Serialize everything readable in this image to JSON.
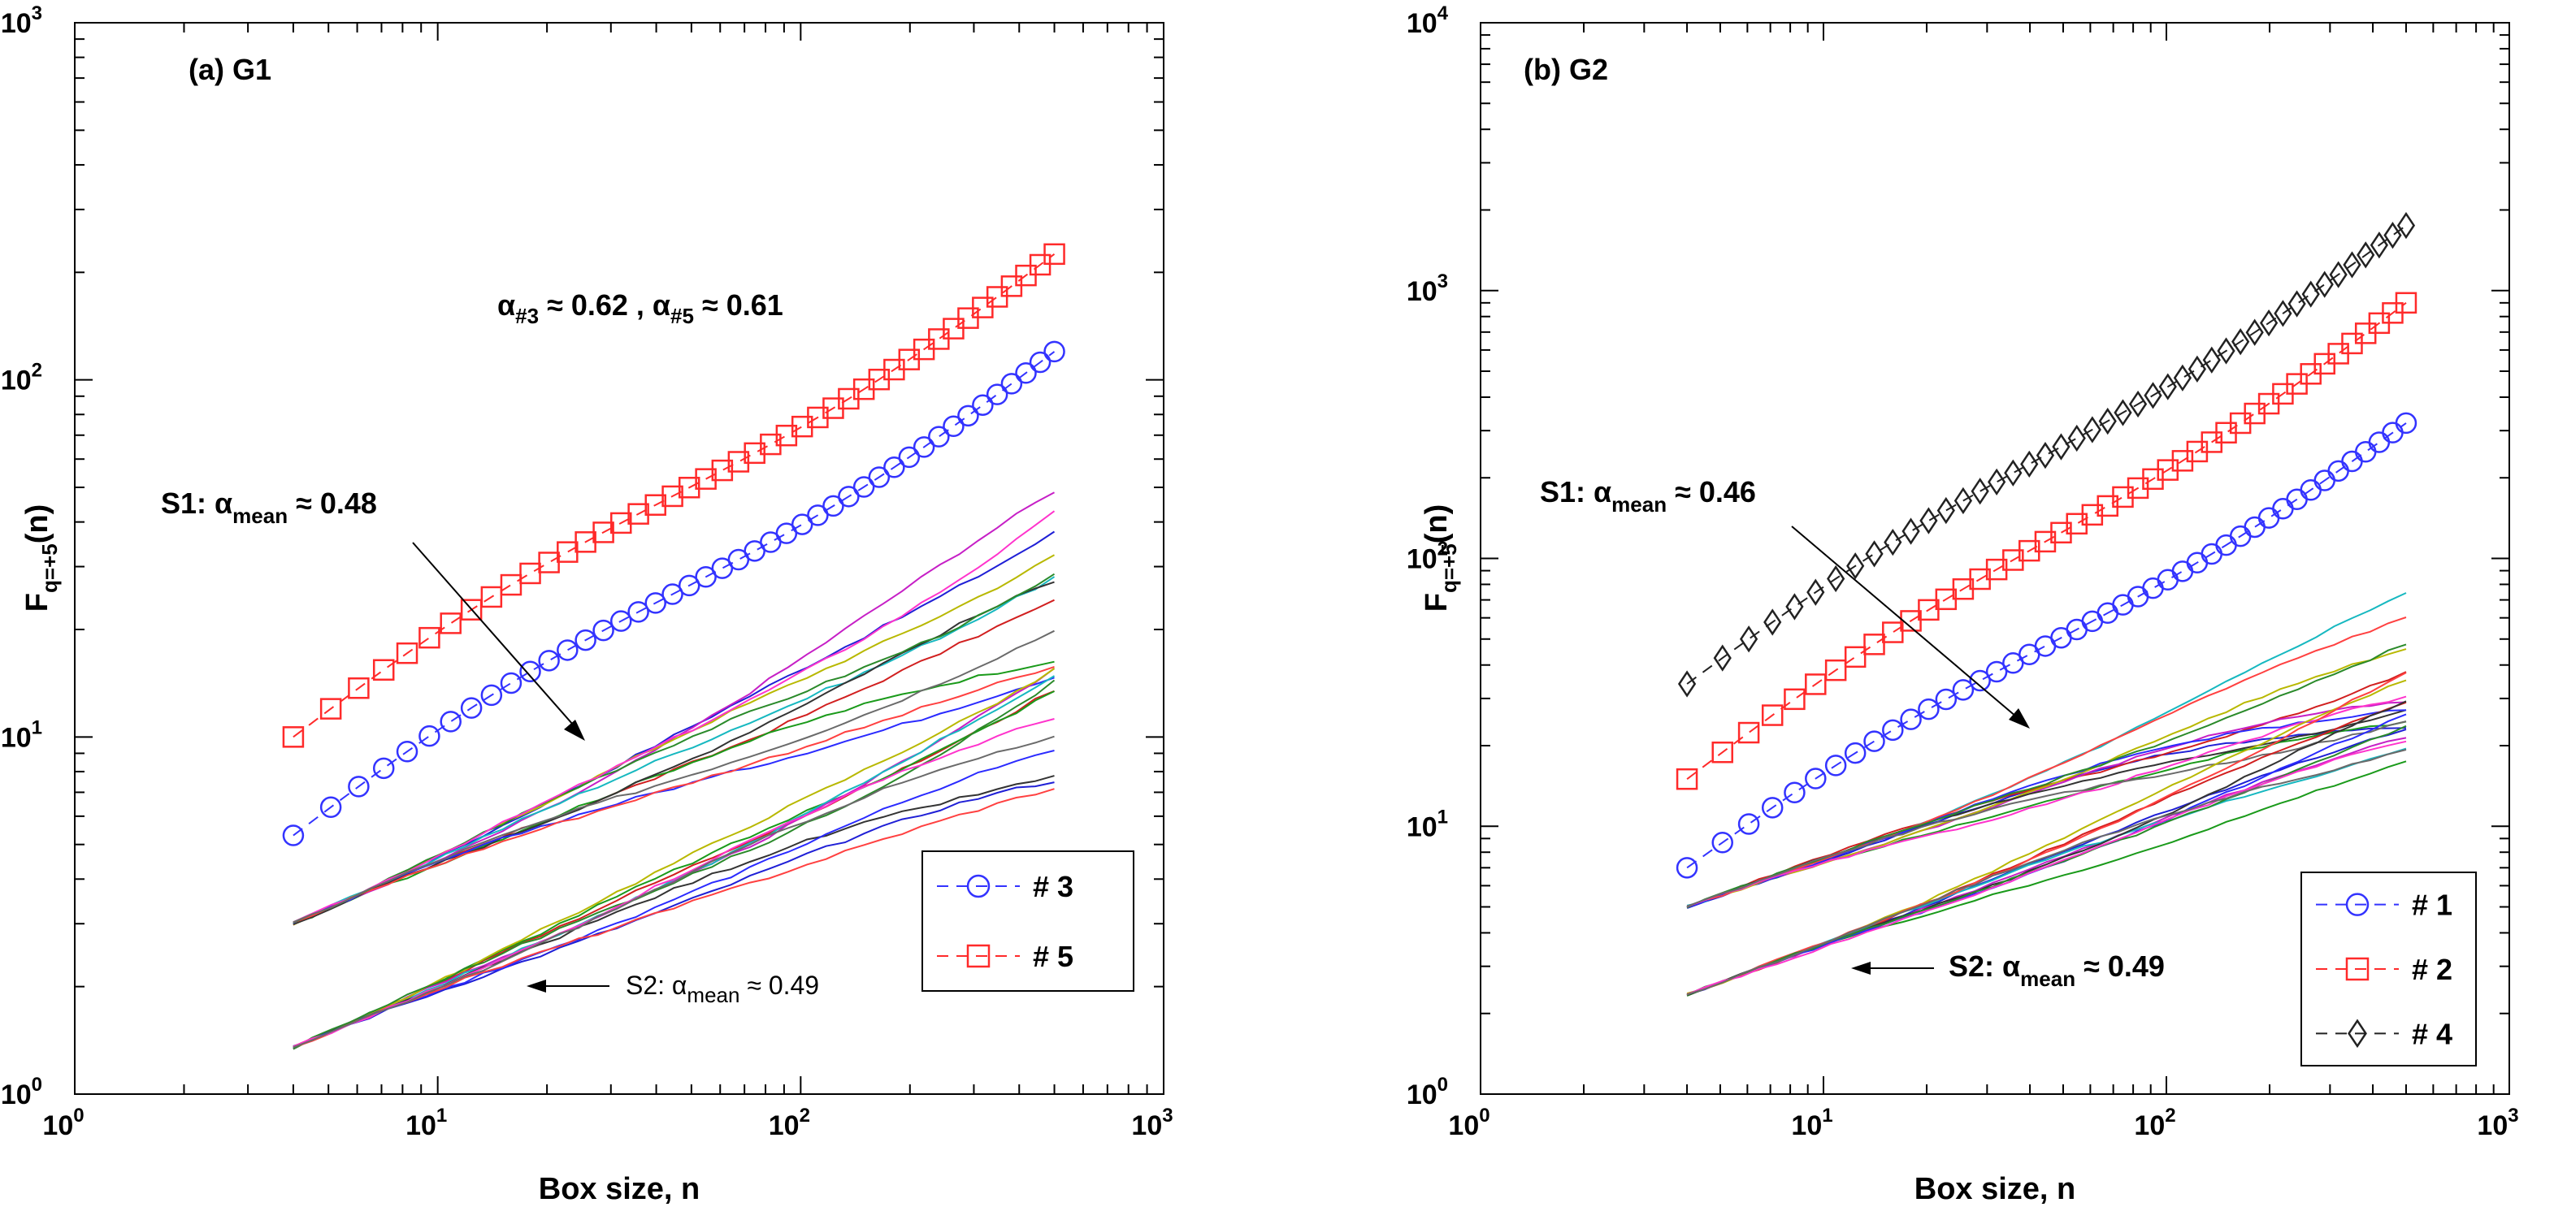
{
  "chart_data": [
    {
      "type": "line",
      "panel_label": "(a) G1",
      "xlabel": "Box size, n",
      "ylabel": "F",
      "ylabel_sub": "q=+5",
      "ylabel_suffix": "(n)",
      "xscale": "log",
      "yscale": "log",
      "xlim": [
        1,
        1000
      ],
      "ylim": [
        1,
        1000
      ],
      "xticks": [
        {
          "base": "10",
          "exp": "0"
        },
        {
          "base": "10",
          "exp": "1"
        },
        {
          "base": "10",
          "exp": "2"
        },
        {
          "base": "10",
          "exp": "3"
        }
      ],
      "yticks": [
        {
          "base": "10",
          "exp": "0"
        },
        {
          "base": "10",
          "exp": "1"
        },
        {
          "base": "10",
          "exp": "2"
        },
        {
          "base": "10",
          "exp": "3"
        }
      ],
      "legend_position": "bottom-right",
      "series": [
        {
          "name": "# 3",
          "color": "#3333ff",
          "marker": "circle",
          "dashed": true,
          "x0": 4,
          "x1": 500,
          "y0": 5.3,
          "y1": 120,
          "n": 44
        },
        {
          "name": "# 5",
          "color": "#ff2a2a",
          "marker": "square",
          "dashed": true,
          "x0": 4,
          "x1": 500,
          "y0": 10,
          "y1": 225,
          "n": 44
        }
      ],
      "bundles": [
        {
          "group": "S1",
          "x0": 4,
          "x1": 500,
          "y0": 3.0,
          "y1": 25,
          "spread": 0.12
        },
        {
          "group": "S2",
          "x0": 4,
          "x1": 500,
          "y0": 1.35,
          "y1": 11,
          "spread": 0.1
        }
      ],
      "annotations": {
        "alpha_text": {
          "a": "α",
          "s1": "#3",
          "m": " ≈ 0.62 , α",
          "s2": "#5",
          "e": " ≈ 0.61"
        },
        "s1": {
          "prefix": "S1: α",
          "sub": "mean",
          "suffix": " ≈ 0.48"
        },
        "s2": {
          "prefix": "S2: α",
          "sub": "mean",
          "suffix": " ≈ 0.49"
        }
      }
    },
    {
      "type": "line",
      "panel_label": "(b) G2",
      "xlabel": "Box size, n",
      "ylabel": "F",
      "ylabel_sub": "q=+5",
      "ylabel_suffix": "(n)",
      "xscale": "log",
      "yscale": "log",
      "xlim": [
        1,
        1000
      ],
      "ylim": [
        1,
        10000
      ],
      "xticks": [
        {
          "base": "10",
          "exp": "0"
        },
        {
          "base": "10",
          "exp": "1"
        },
        {
          "base": "10",
          "exp": "2"
        },
        {
          "base": "10",
          "exp": "3"
        }
      ],
      "yticks": [
        {
          "base": "10",
          "exp": "0"
        },
        {
          "base": "10",
          "exp": "1"
        },
        {
          "base": "10",
          "exp": "2"
        },
        {
          "base": "10",
          "exp": "3"
        },
        {
          "base": "10",
          "exp": "4"
        }
      ],
      "legend_position": "bottom-right",
      "series": [
        {
          "name": "# 1",
          "color": "#3333ff",
          "marker": "circle",
          "dashed": true,
          "x0": 4,
          "x1": 500,
          "y0": 7,
          "y1": 320,
          "n": 44
        },
        {
          "name": "# 2",
          "color": "#ff2a2a",
          "marker": "square",
          "dashed": true,
          "x0": 4,
          "x1": 500,
          "y0": 15,
          "y1": 900,
          "n": 44
        },
        {
          "name": "# 4",
          "color": "#222222",
          "marker": "diamond",
          "dashed": true,
          "x0": 4,
          "x1": 500,
          "y0": 34,
          "y1": 1750,
          "n": 44
        }
      ],
      "bundles": [
        {
          "group": "S1",
          "x0": 4,
          "x1": 500,
          "y0": 5.0,
          "y1": 45,
          "spread": 0.14
        },
        {
          "group": "S2",
          "x0": 4,
          "x1": 500,
          "y0": 2.35,
          "y1": 24,
          "spread": 0.1
        }
      ],
      "annotations": {
        "s1": {
          "prefix": "S1: α",
          "sub": "mean",
          "suffix": " ≈ 0.46"
        },
        "s2": {
          "prefix": "S2: α",
          "sub": "mean",
          "suffix": " ≈ 0.49"
        }
      }
    }
  ]
}
